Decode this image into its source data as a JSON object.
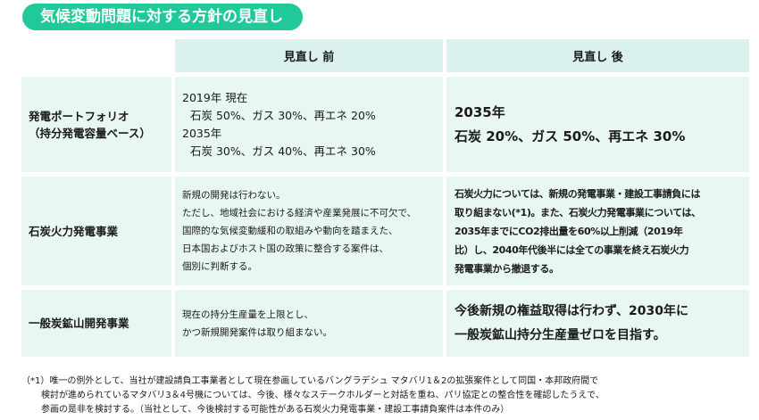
{
  "title": "気候変動問題に対する方針の見直し",
  "table": {
    "header": {
      "before": "見直し 前",
      "after": "見直し 後"
    },
    "rows": [
      {
        "label": [
          "発電ポートフォリオ",
          "（持分発電容量ベース）"
        ],
        "before": [
          "2019年 現在",
          "石炭 50%、ガス 30%、再エネ 20%",
          "2035年",
          "石炭 30%、ガス 40%、再エネ 30%"
        ],
        "after": [
          "2035年",
          "石炭 20%、ガス 50%、再エネ 30%"
        ]
      },
      {
        "label": [
          "石炭火力発電事業"
        ],
        "before": [
          "新規の開発は行わない。",
          "ただし、地域社会における経済や産業発展に不可欠で、",
          "国際的な気候変動緩和の取組みや動向を踏まえた、",
          "日本国およびホスト国の政策に整合する案件は、",
          "個別に判断する。"
        ],
        "after": [
          "石炭火力については、新規の発電事業・建設工事請負には",
          "取り組まない(*1)。また、石炭火力発電事業については、",
          "2035年までにCO2排出量を60%以上削減（2019年",
          "比）し、2040年代後半には全ての事業を終え石炭火力",
          "発電事業から撤退する。"
        ]
      },
      {
        "label": [
          "一般炭鉱山開発事業"
        ],
        "before": [
          "現在の持分生産量を上限とし、",
          "かつ新規開発案件は取り組まない。"
        ],
        "after": [
          "今後新規の権益取得は行わず、2030年に",
          "一般炭鉱山持分生産量ゼロを目指す。"
        ]
      }
    ]
  },
  "footnote": [
    "（*1）唯一の例外として、当社が建設請負工事業者として現在参画しているバングラデシュ マタバリ1＆2の拡張案件として同国・本邦政府間で",
    "検討が進められているマタバリ3＆4号機については、今後、様々なステークホルダーと対話を重ね、パリ協定との整合性を確認したうえで、",
    "参画の是非を検討する。（当社として、今後検討する可能性がある石炭火力発電事業・建設工事請負案件は本件のみ）"
  ],
  "colors": {
    "accent": "#21c99a",
    "cell": "#e8f6f4",
    "header": "#daf1ee"
  }
}
